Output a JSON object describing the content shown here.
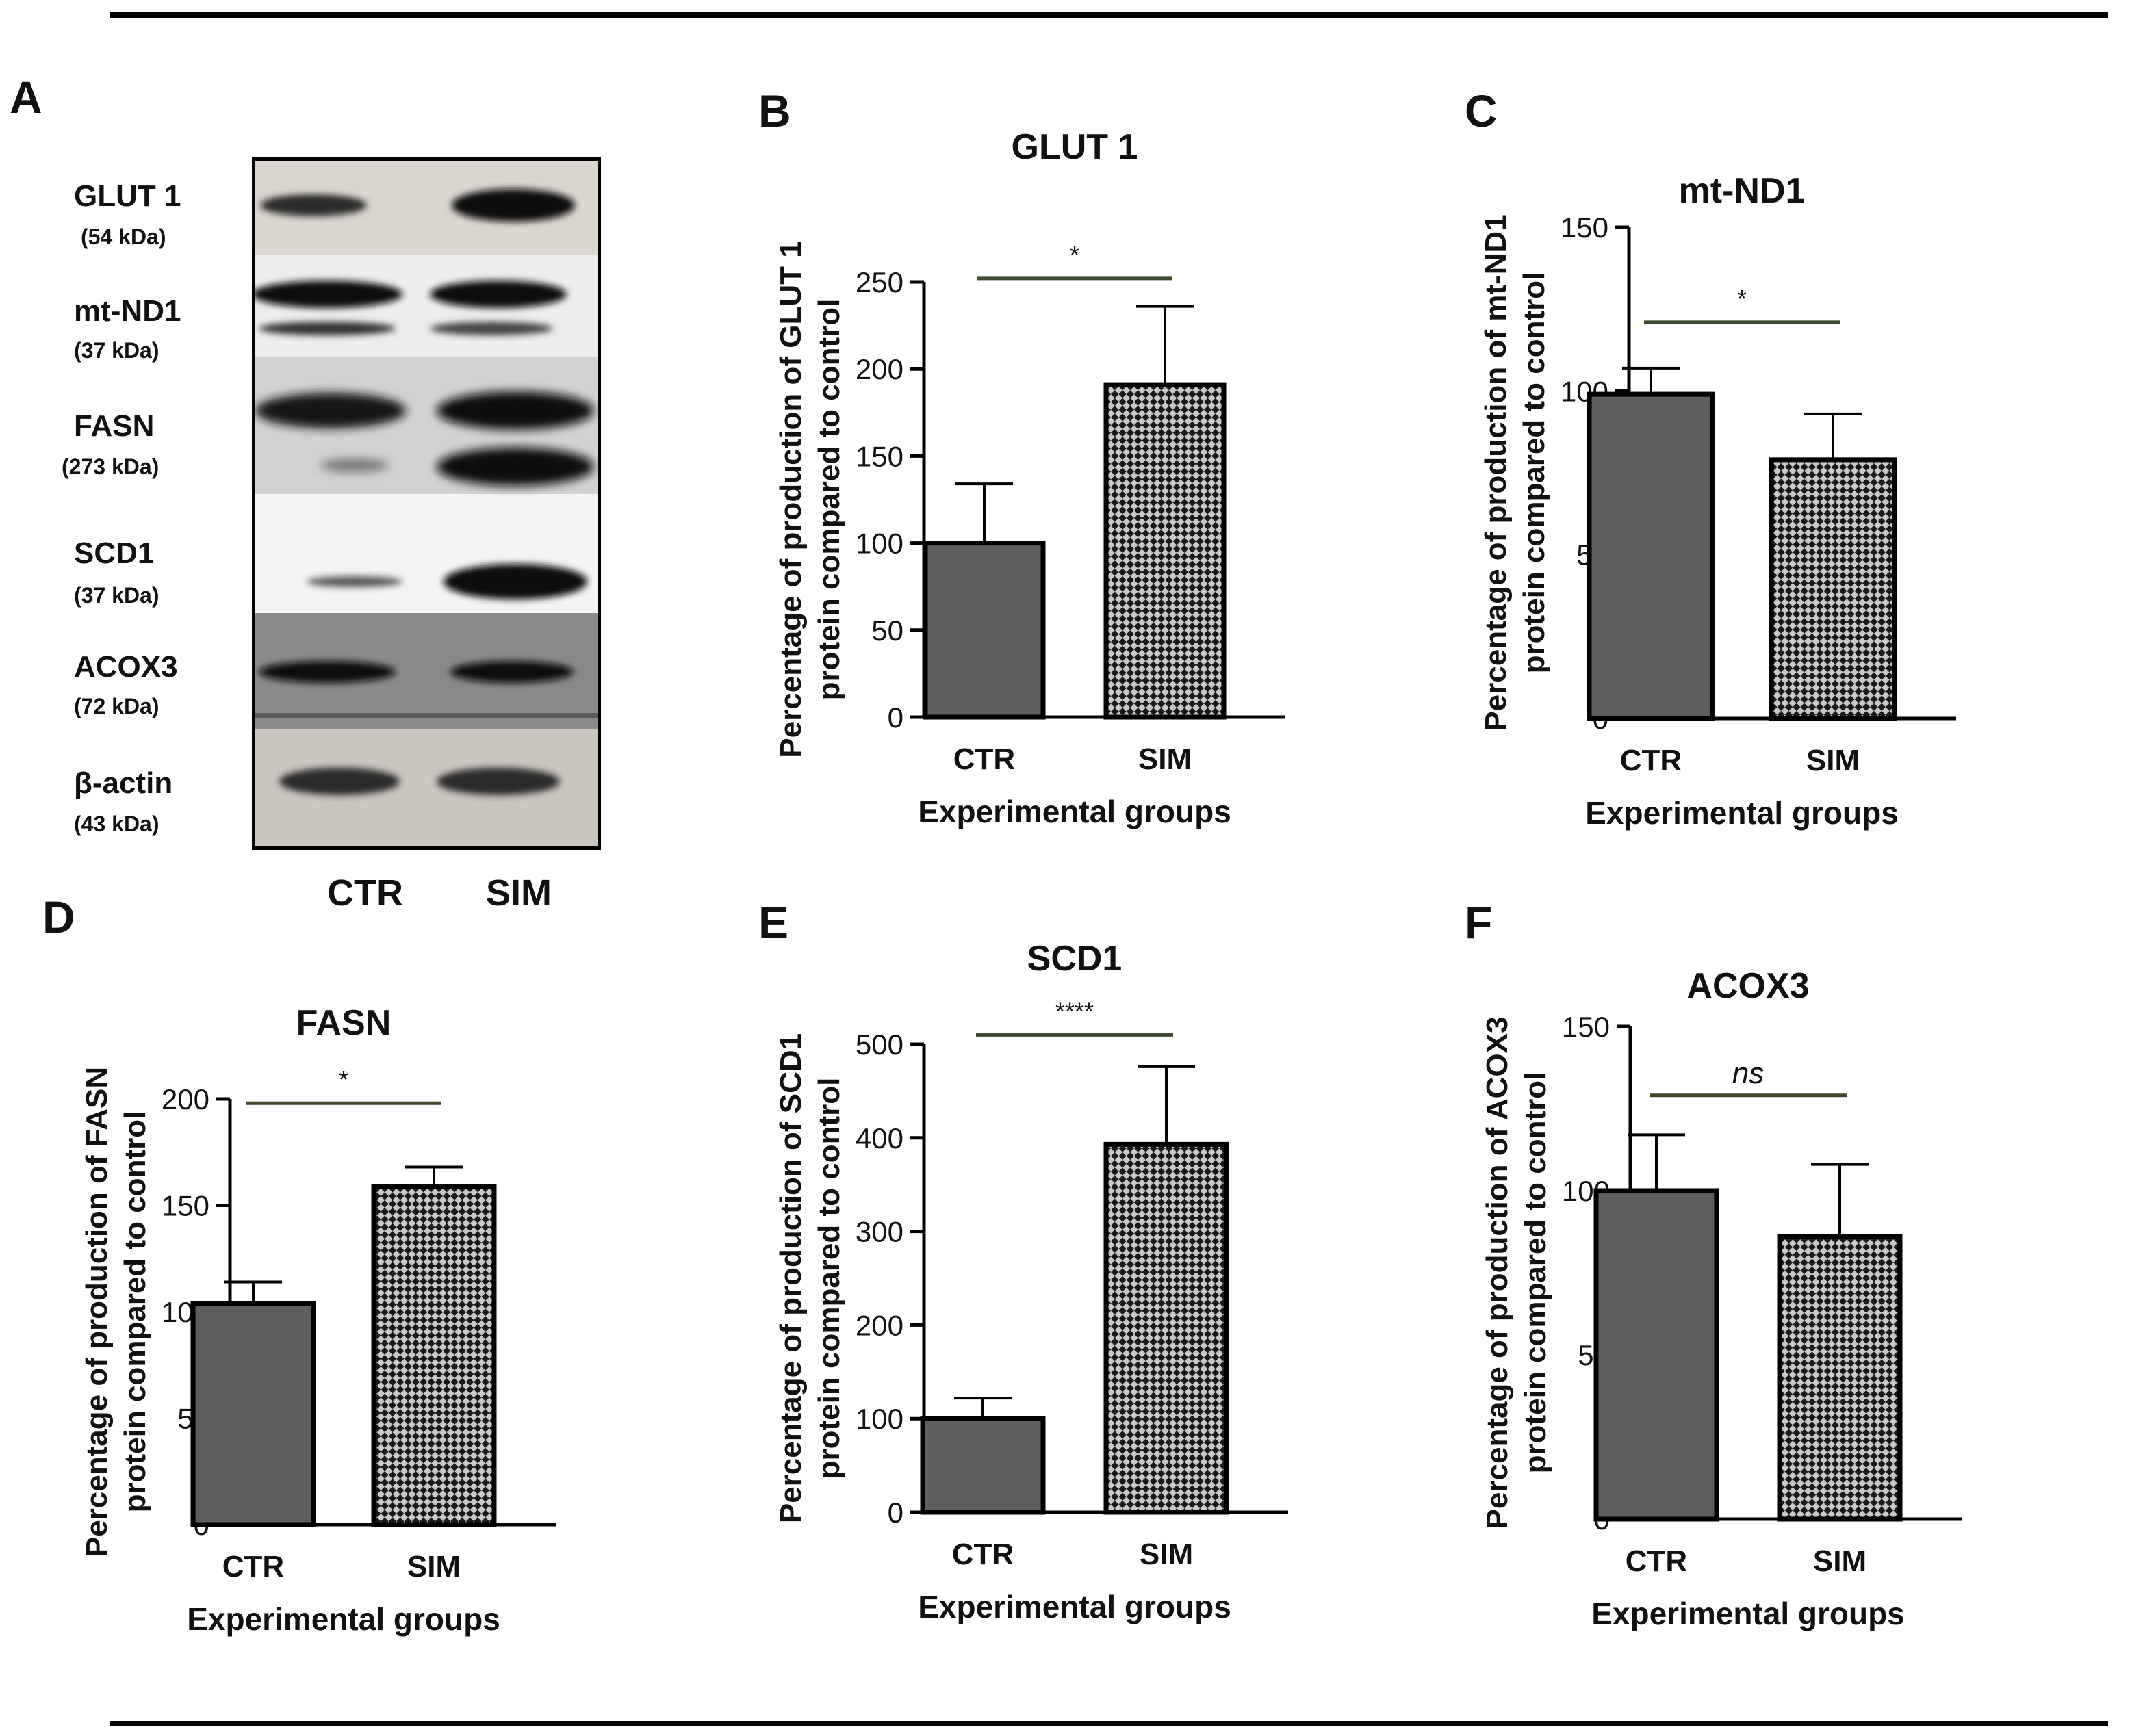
{
  "panel_letters": [
    "A",
    "B",
    "C",
    "D",
    "E",
    "F"
  ],
  "western_blot": {
    "bands": [
      {
        "name": "GLUT 1",
        "kda": "(54 kDa)"
      },
      {
        "name": "mt-ND1",
        "kda": "(37 kDa)"
      },
      {
        "name": "FASN",
        "kda": "(273 kDa)"
      },
      {
        "name": "SCD1",
        "kda": "(37 kDa)"
      },
      {
        "name": "ACOX3",
        "kda": "(72 kDa)"
      },
      {
        "name": "β-actin",
        "kda": "(43 kDa)"
      }
    ],
    "lanes": [
      "CTR",
      "SIM"
    ]
  },
  "colors": {
    "ctr_bar": "#5e5e5e",
    "sim_pattern_dark": "#1a1a1a",
    "sim_pattern_light": "#c8c8c8",
    "significance_line": "#3f4a2e",
    "rule": "#000000"
  },
  "chart_data": [
    {
      "panel": "B",
      "type": "bar",
      "title": "GLUT 1",
      "categories": [
        "CTR",
        "SIM"
      ],
      "values": [
        100,
        191
      ],
      "errors": [
        34,
        45
      ],
      "xlabel": "Experimental groups",
      "ylabel": [
        "Percentage of production of GLUT 1",
        "protein compared to control"
      ],
      "ylim": [
        0,
        250
      ],
      "yticks": [
        0,
        50,
        100,
        150,
        200,
        250
      ],
      "significance": "*",
      "sig_level": 252
    },
    {
      "panel": "C",
      "type": "bar",
      "title": "mt-ND1",
      "categories": [
        "CTR",
        "SIM"
      ],
      "values": [
        99,
        79
      ],
      "errors": [
        8,
        14
      ],
      "xlabel": "Experimental groups",
      "ylabel": [
        "Percentage of production of mt-ND1",
        "protein compared to control"
      ],
      "ylim": [
        0,
        150
      ],
      "yticks": [
        0,
        50,
        100,
        150
      ],
      "significance": "*",
      "sig_level": 121
    },
    {
      "panel": "D",
      "type": "bar",
      "title": "FASN",
      "categories": [
        "CTR",
        "SIM"
      ],
      "values": [
        104,
        159
      ],
      "errors": [
        10,
        9
      ],
      "xlabel": "Experimental groups",
      "ylabel": [
        "Percentage of production of FASN",
        "protein compared to control"
      ],
      "ylim": [
        0,
        200
      ],
      "yticks": [
        0,
        50,
        100,
        150,
        200
      ],
      "significance": "*",
      "sig_level": 198
    },
    {
      "panel": "E",
      "type": "bar",
      "title": "SCD1",
      "categories": [
        "CTR",
        "SIM"
      ],
      "values": [
        100,
        393
      ],
      "errors": [
        22,
        83
      ],
      "xlabel": "Experimental groups",
      "ylabel": [
        "Percentage of production of SCD1",
        "protein compared to control"
      ],
      "ylim": [
        0,
        500
      ],
      "yticks": [
        0,
        100,
        200,
        300,
        400,
        500
      ],
      "significance": "****",
      "sig_level": 510
    },
    {
      "panel": "F",
      "type": "bar",
      "title": "ACOX3",
      "categories": [
        "CTR",
        "SIM"
      ],
      "values": [
        100,
        86
      ],
      "errors": [
        17,
        22
      ],
      "xlabel": "Experimental groups",
      "ylabel": [
        "Percentage of production of ACOX3",
        "protein compared to control"
      ],
      "ylim": [
        0,
        150
      ],
      "yticks": [
        0,
        50,
        100,
        150
      ],
      "significance": "ns",
      "sig_italic": true,
      "sig_level": 129
    }
  ]
}
